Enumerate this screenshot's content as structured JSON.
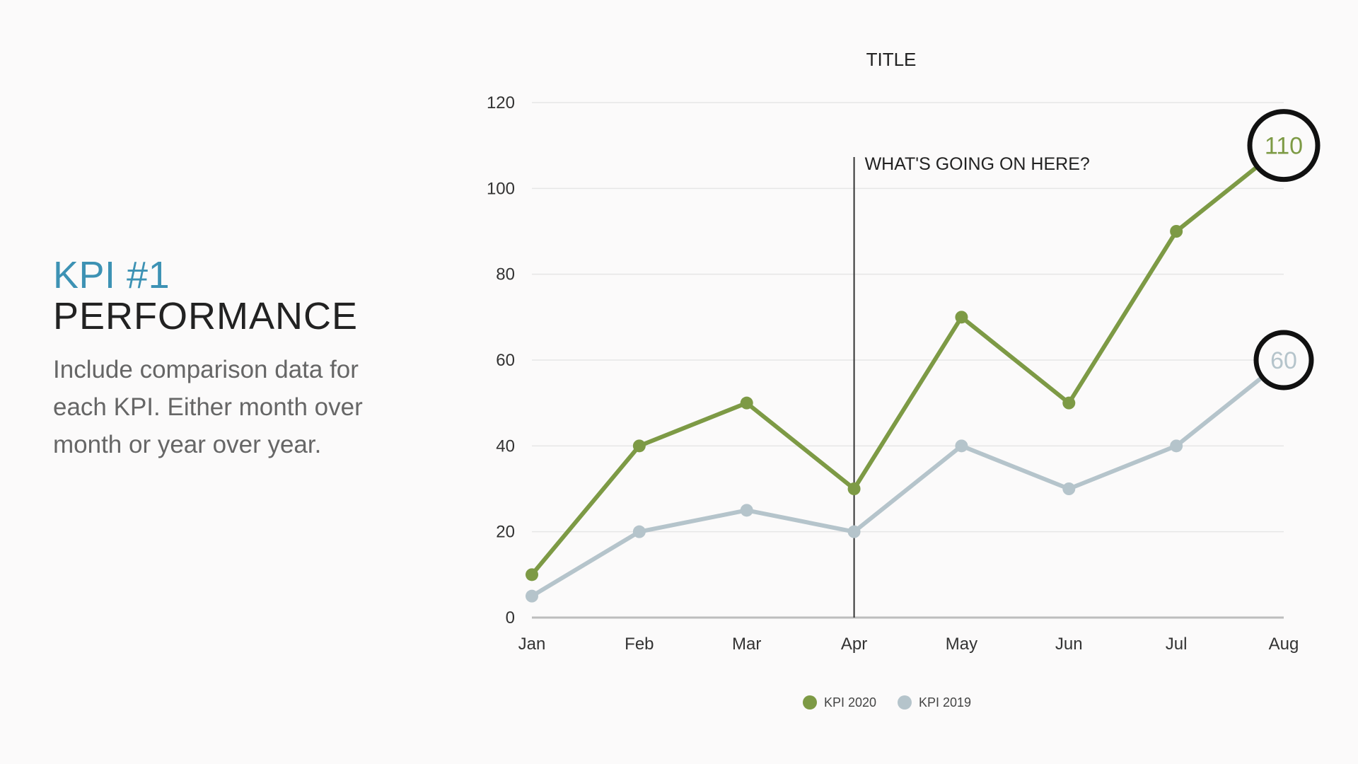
{
  "left_panel": {
    "title": "KPI #1",
    "subtitle": "PERFORMANCE",
    "description": "Include comparison data for each KPI. Either month over month or year over year."
  },
  "colors": {
    "kpi_title": "#3d92b4",
    "series_2020": "#7d9a45",
    "series_2019": "#b5c4cb",
    "highlight_circle": "#111111"
  },
  "chart_data": {
    "type": "line",
    "title": "TITLE",
    "xlabel": "",
    "ylabel": "",
    "categories": [
      "Jan",
      "Feb",
      "Mar",
      "Apr",
      "May",
      "Jun",
      "Jul",
      "Aug"
    ],
    "ylim": [
      0,
      120
    ],
    "yticks": [
      0,
      20,
      40,
      60,
      80,
      100,
      120
    ],
    "grid": true,
    "legend_position": "bottom",
    "series": [
      {
        "name": "KPI 2020",
        "values": [
          10,
          40,
          50,
          30,
          70,
          50,
          90,
          110
        ]
      },
      {
        "name": "KPI 2019",
        "values": [
          5,
          20,
          25,
          20,
          40,
          30,
          40,
          60
        ]
      }
    ],
    "annotation": {
      "category": "Apr",
      "text": "WHAT'S GOING ON HERE?"
    },
    "highlights": [
      {
        "series": "KPI 2020",
        "category": "Aug",
        "label": "110"
      },
      {
        "series": "KPI 2019",
        "category": "Aug",
        "label": "60"
      }
    ]
  }
}
